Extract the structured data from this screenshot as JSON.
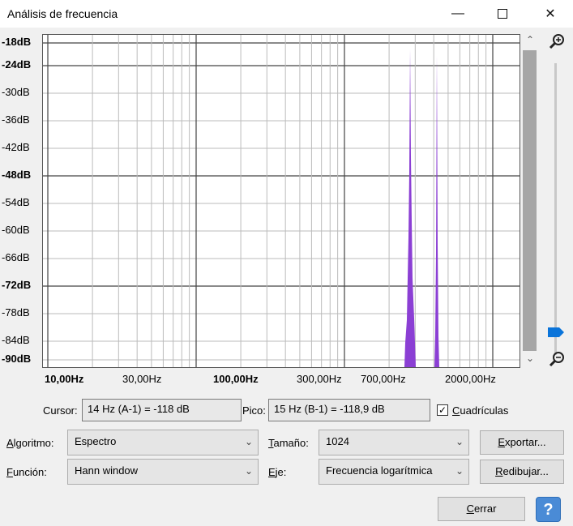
{
  "window": {
    "title": "Análisis de frecuencia",
    "minimize_icon": "minimize-icon",
    "maximize_icon": "maximize-icon",
    "close_icon": "close-icon"
  },
  "plot": {
    "y_labels": [
      "-18dB",
      "-24dB",
      "-30dB",
      "-36dB",
      "-42dB",
      "-48dB",
      "-54dB",
      "-60dB",
      "-66dB",
      "-72dB",
      "-78dB",
      "-84dB",
      "-90dB"
    ],
    "y_bold": [
      "-18dB",
      "-24dB",
      "-48dB",
      "-72dB",
      "-90dB"
    ],
    "x_labels": [
      "10,00Hz",
      "30,00Hz",
      "100,00Hz",
      "300,00Hz",
      "700,00Hz",
      "2000,00Hz"
    ],
    "x_bold": [
      "10,00Hz",
      "100,00Hz"
    ],
    "grid": true,
    "series_color": "#8b3fd4"
  },
  "readouts": {
    "cursor_label": "Cursor:",
    "cursor_value": "14 Hz (A-1) = -118 dB",
    "peak_label": "Pico:",
    "peak_value": "15 Hz (B-1) = -118,9 dB",
    "grid_label": "Cuadrículas",
    "grid_checked": true
  },
  "controls": {
    "algorithm_label": "Algoritmo:",
    "algorithm_value": "Espectro",
    "size_label": "Tamaño:",
    "size_value": "1024",
    "export_label": "Exportar...",
    "function_label": "Función:",
    "function_value": "Hann window",
    "axis_label": "Eje:",
    "axis_value": "Frecuencia logarítmica",
    "redraw_label": "Redibujar...",
    "close_label": "Cerrar",
    "help_label": "?"
  },
  "icons": {
    "zoom_in": "zoom-in-icon",
    "zoom_out": "zoom-out-icon",
    "scroll_up": "chevron-up-icon",
    "scroll_down": "chevron-down-icon",
    "help": "help-icon"
  }
}
